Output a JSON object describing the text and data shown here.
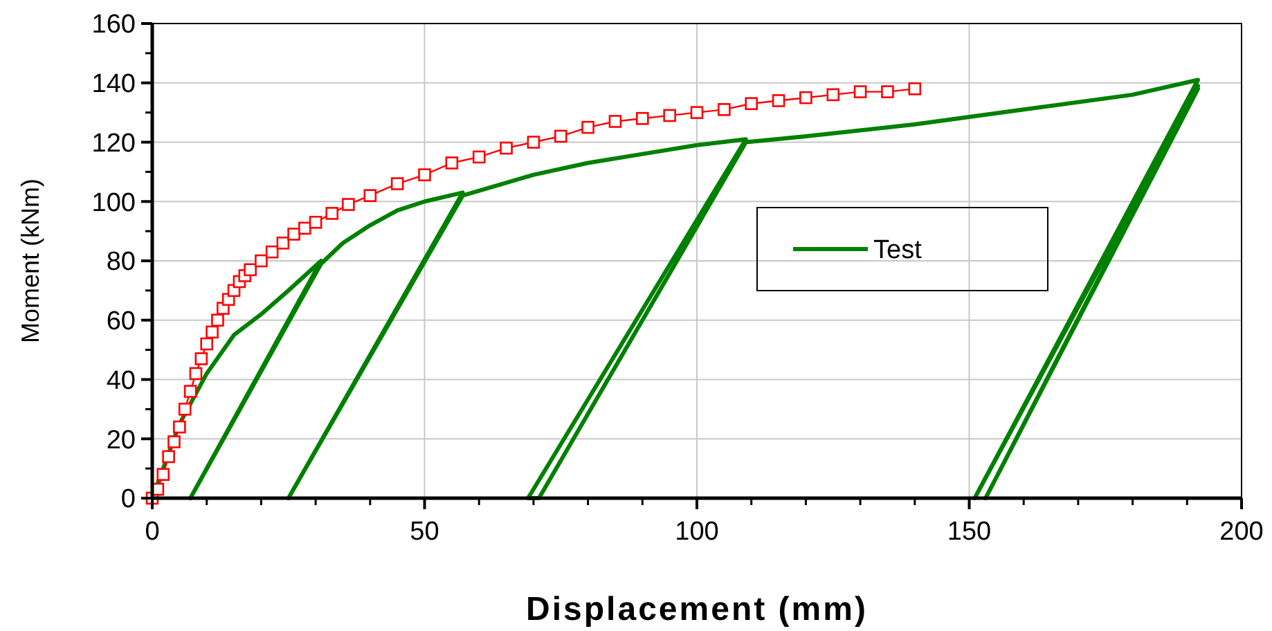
{
  "chart_data": {
    "type": "line",
    "xlabel": "Displacement (mm)",
    "ylabel": "Moment (kNm)",
    "xlim": [
      0,
      200
    ],
    "ylim": [
      0,
      160
    ],
    "xticks": [
      0,
      50,
      100,
      150,
      200
    ],
    "yticks": [
      0,
      20,
      40,
      60,
      80,
      100,
      120,
      140,
      160
    ],
    "grid": true,
    "legend": "right",
    "series": [
      {
        "name": "Test",
        "color": "#008000",
        "marker": "none",
        "x": [
          0,
          5,
          10,
          15,
          20,
          25,
          31,
          7,
          31,
          35,
          40,
          45,
          50,
          57,
          25,
          57,
          70,
          80,
          90,
          100,
          109,
          69,
          71,
          109,
          120,
          140,
          160,
          180,
          192,
          151,
          192,
          153,
          192
        ],
        "values": [
          0,
          25,
          42,
          55,
          62,
          70,
          80,
          0,
          79,
          86,
          92,
          97,
          100,
          103,
          0,
          102,
          109,
          113,
          116,
          119,
          121,
          0,
          0,
          120,
          122,
          126,
          131,
          136,
          141,
          0,
          139,
          0,
          138
        ]
      },
      {
        "color": "#ff0000",
        "marker": "square",
        "x": [
          0,
          1,
          2,
          3,
          4,
          5,
          6,
          7,
          8,
          9,
          10,
          11,
          12,
          13,
          14,
          15,
          16,
          17,
          18,
          20,
          22,
          24,
          26,
          28,
          30,
          33,
          36,
          40,
          45,
          50,
          55,
          60,
          65,
          70,
          75,
          80,
          85,
          90,
          95,
          100,
          105,
          110,
          115,
          120,
          125,
          130,
          135,
          140
        ],
        "values": [
          0,
          3,
          8,
          14,
          19,
          24,
          30,
          36,
          42,
          47,
          52,
          56,
          60,
          64,
          67,
          70,
          73,
          75,
          77,
          80,
          83,
          86,
          89,
          91,
          93,
          96,
          99,
          102,
          106,
          109,
          113,
          115,
          118,
          120,
          122,
          125,
          127,
          128,
          129,
          130,
          131,
          133,
          134,
          135,
          136,
          137,
          137,
          138
        ]
      }
    ]
  }
}
